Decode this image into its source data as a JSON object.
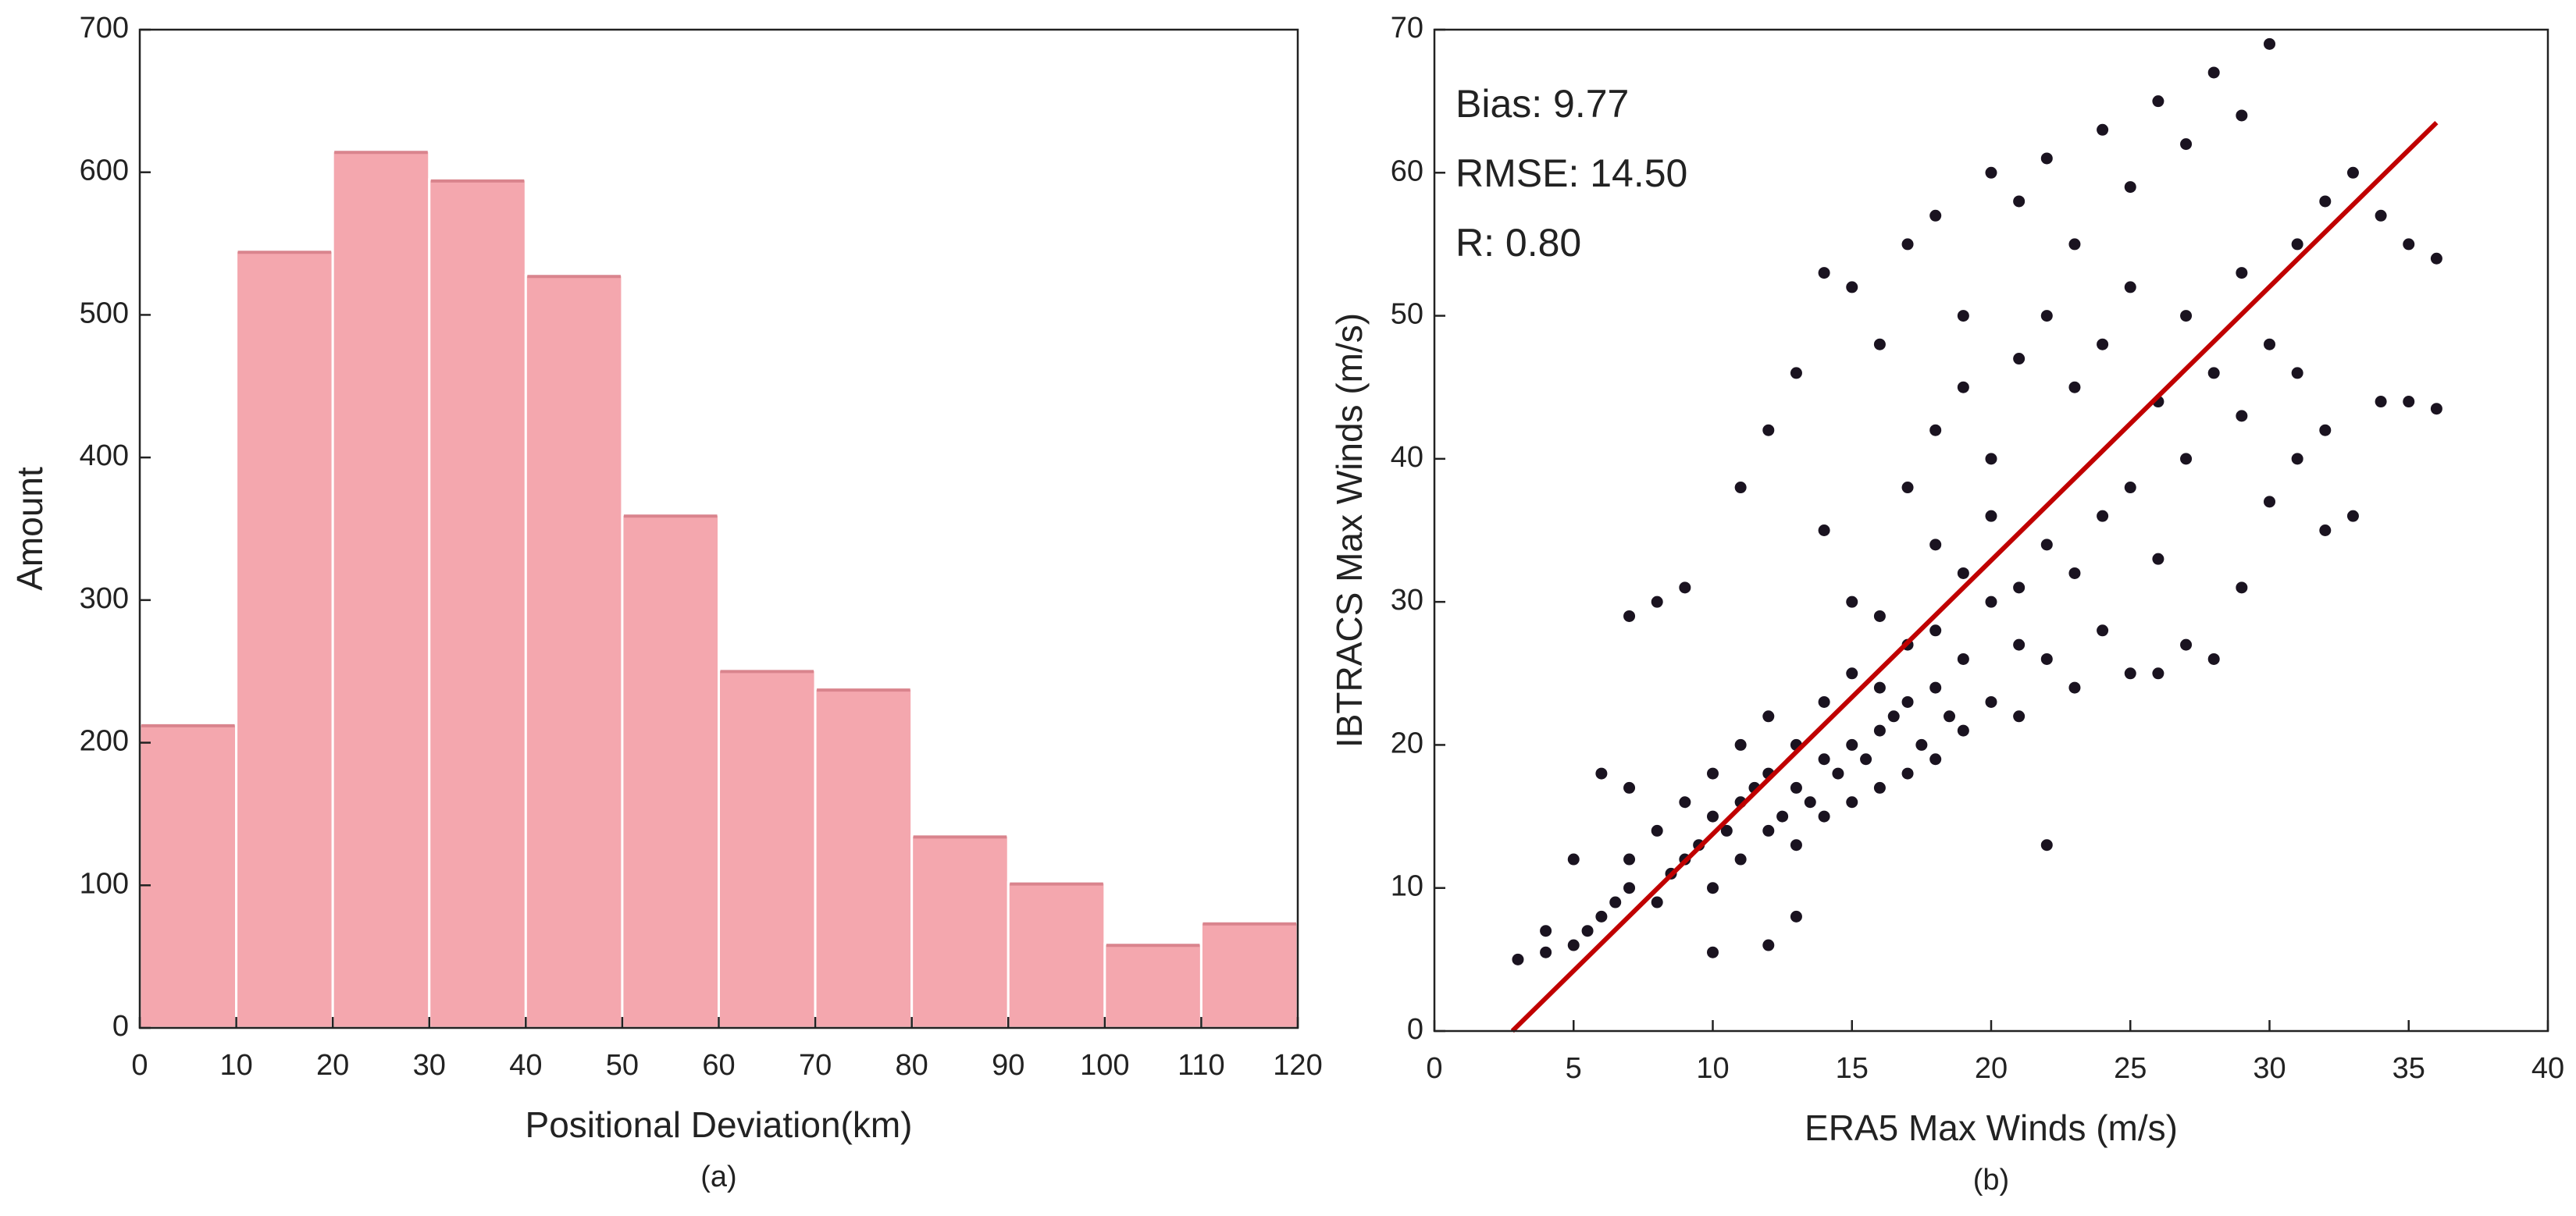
{
  "chart_data": [
    {
      "type": "histogram",
      "bins": [
        0,
        10,
        20,
        30,
        40,
        50,
        60,
        70,
        80,
        90,
        100,
        110,
        120
      ],
      "counts": [
        213,
        545,
        615,
        595,
        528,
        360,
        251,
        238,
        135,
        102,
        59,
        74
      ],
      "color": "#f4a7ae",
      "xlim": [
        0,
        120
      ],
      "xticks": [
        0,
        10,
        20,
        30,
        40,
        50,
        60,
        70,
        80,
        90,
        100,
        110,
        120
      ],
      "ylim": [
        0,
        700
      ],
      "yticks": [
        0,
        100,
        200,
        300,
        400,
        500,
        600,
        700
      ],
      "xlabel": "Positional Deviation(km)",
      "ylabel": "Amount",
      "caption": "(a)",
      "grid": false
    },
    {
      "type": "scatter",
      "x": [
        3,
        4,
        5,
        5.5,
        6,
        6.5,
        7,
        7,
        8,
        8,
        8.5,
        9,
        9,
        9.5,
        10,
        10,
        10,
        10.5,
        11,
        11,
        11,
        11.5,
        12,
        12,
        12,
        12.5,
        13,
        13,
        13,
        13.5,
        14,
        14,
        14,
        14.5,
        15,
        15,
        15,
        15.5,
        16,
        16,
        16,
        16.5,
        17,
        17,
        17,
        17.5,
        18,
        18,
        18,
        18.5,
        19,
        19,
        20,
        20,
        21,
        21,
        22,
        13,
        12,
        10,
        7,
        6,
        8,
        7,
        9,
        5,
        4,
        14,
        13,
        12,
        11,
        14,
        15,
        16,
        17,
        18,
        19,
        20,
        21,
        22,
        23,
        24,
        25,
        26,
        27,
        28,
        29,
        30,
        17,
        18,
        19,
        20,
        21,
        22,
        23,
        24,
        25,
        26,
        27,
        28,
        29,
        30,
        31,
        32,
        33,
        34,
        35,
        36,
        36,
        35,
        33,
        32,
        31,
        30,
        29,
        28,
        27,
        26,
        25,
        24,
        23,
        22,
        21,
        20,
        19,
        18,
        16,
        15,
        26,
        25,
        24,
        23,
        22,
        29,
        32,
        34,
        31,
        27
      ],
      "y": [
        5,
        5.5,
        6,
        7,
        8,
        9,
        10,
        12,
        9,
        14,
        11,
        12,
        16,
        13,
        10,
        15,
        18,
        14,
        12,
        16,
        20,
        17,
        14,
        18,
        22,
        15,
        13,
        17,
        20,
        16,
        15,
        19,
        23,
        18,
        16,
        20,
        25,
        19,
        17,
        21,
        24,
        22,
        18,
        23,
        27,
        20,
        19,
        24,
        28,
        22,
        21,
        26,
        23,
        30,
        22,
        27,
        13,
        8,
        6,
        5.5,
        17,
        18,
        30,
        29,
        31,
        12,
        7,
        35,
        46,
        42,
        38,
        53,
        52,
        48,
        55,
        57,
        50,
        60,
        58,
        61,
        55,
        63,
        59,
        65,
        62,
        67,
        64,
        69,
        38,
        42,
        45,
        40,
        47,
        50,
        45,
        48,
        52,
        44,
        50,
        46,
        53,
        48,
        55,
        58,
        60,
        57,
        55,
        54,
        43.5,
        44,
        36,
        35,
        40,
        37,
        31,
        26,
        27,
        33,
        38,
        36,
        32,
        34,
        31,
        36,
        32,
        34,
        29,
        30,
        25,
        25,
        28,
        24,
        26,
        43,
        42,
        44,
        46,
        40
      ],
      "color": "#1a1320",
      "fit_line": {
        "x": [
          2.8,
          36
        ],
        "y": [
          0,
          63.5
        ],
        "color": "#c00000"
      },
      "annotations": [
        "Bias: 9.77",
        "RMSE: 14.50",
        "R: 0.80"
      ],
      "xlim": [
        0,
        40
      ],
      "xticks": [
        0,
        5,
        10,
        15,
        20,
        25,
        30,
        35,
        40
      ],
      "ylim": [
        0,
        70
      ],
      "yticks": [
        0,
        10,
        20,
        30,
        40,
        50,
        60,
        70
      ],
      "xlabel": "ERA5 Max Winds (m/s)",
      "ylabel": "IBTRACS Max Winds (m/s)",
      "caption": "(b)",
      "grid": false
    }
  ]
}
